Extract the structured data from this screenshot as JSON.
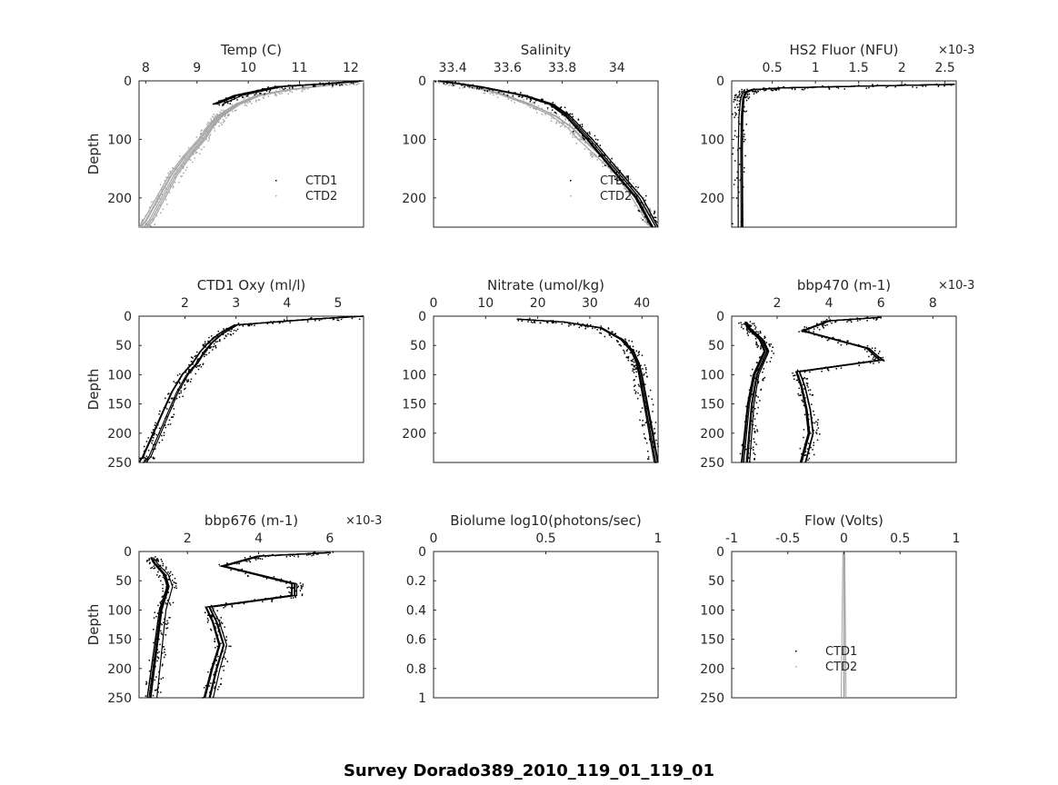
{
  "chart_data": {
    "title": "Survey Dorado389_2010_119_01_119_01",
    "panels": [
      {
        "type": "scatter",
        "title": "Temp (C)",
        "ylabel": "Depth",
        "xlim": [
          7.87,
          12.25
        ],
        "ylim": [
          0,
          250
        ],
        "xticks": [
          "8",
          "9",
          "10",
          "11",
          "12"
        ],
        "xtickvals": [
          8,
          9,
          10,
          11,
          12
        ],
        "yticks": [
          "0",
          "100",
          "200"
        ],
        "ytickvals": [
          0,
          100,
          200
        ],
        "exponent": "",
        "legend": [
          "CTD1",
          "CTD2"
        ],
        "series": [
          {
            "name": "CTD2",
            "color": "#a6a6a6",
            "depth": [
              0,
              5,
              15,
              25,
              40,
              60,
              80,
              100,
              130,
              160,
              200,
              240,
              250
            ],
            "values": [
              12.2,
              11.8,
              10.8,
              10.2,
              9.8,
              9.45,
              9.25,
              9.1,
              8.8,
              8.55,
              8.3,
              8.05,
              7.95
            ]
          },
          {
            "name": "CTD1",
            "color": "#000000",
            "depth": [
              0,
              5,
              10,
              25,
              40
            ],
            "values": [
              12.2,
              11.5,
              10.6,
              9.8,
              9.4
            ]
          }
        ]
      },
      {
        "type": "scatter",
        "title": "Salinity",
        "ylabel": "",
        "xlim": [
          33.33,
          34.15
        ],
        "ylim": [
          0,
          250
        ],
        "xticks": [
          "33.4",
          "33.6",
          "33.8",
          "34"
        ],
        "xtickvals": [
          33.4,
          33.6,
          33.8,
          34
        ],
        "yticks": [
          "0",
          "100",
          "200"
        ],
        "ytickvals": [
          0,
          100,
          200
        ],
        "exponent": "",
        "legend": [
          "CTD1",
          "CTD2"
        ],
        "series": [
          {
            "name": "CTD2",
            "color": "#a6a6a6",
            "depth": [
              0,
              5,
              20,
              40,
              60,
              80,
              100,
              130,
              160,
              200,
              230,
              250
            ],
            "values": [
              33.33,
              33.42,
              33.56,
              33.68,
              33.77,
              33.83,
              33.87,
              33.94,
              34.01,
              34.07,
              34.11,
              34.14
            ]
          },
          {
            "name": "CTD1",
            "color": "#000000",
            "depth": [
              0,
              10,
              25,
              40,
              60,
              100,
              150,
              200,
              250
            ],
            "values": [
              33.35,
              33.5,
              33.66,
              33.76,
              33.82,
              33.9,
              33.99,
              34.08,
              34.14
            ]
          }
        ]
      },
      {
        "type": "scatter",
        "title": "HS2 Fluor (NFU)",
        "ylabel": "",
        "xlim": [
          0.03,
          2.63
        ],
        "ylim": [
          0,
          250
        ],
        "xticks": [
          "0.5",
          "1",
          "1.5",
          "2",
          "2.5"
        ],
        "xtickvals": [
          0.5,
          1,
          1.5,
          2,
          2.5
        ],
        "yticks": [
          "0",
          "100",
          "200"
        ],
        "ytickvals": [
          0,
          100,
          200
        ],
        "exponent": "×10-3",
        "legend": [],
        "series": [
          {
            "name": "CTD1",
            "color": "#000000",
            "depth": [
              6,
              9,
              12,
              15,
              20,
              30,
              60,
              120,
              250
            ],
            "values": [
              2.6,
              1.5,
              0.6,
              0.25,
              0.16,
              0.13,
              0.11,
              0.1,
              0.1
            ]
          }
        ]
      },
      {
        "type": "line",
        "title": "CTD1 Oxy (ml/l)",
        "ylabel": "Depth",
        "xlim": [
          1.1,
          5.5
        ],
        "ylim": [
          0,
          250
        ],
        "xticks": [
          "2",
          "3",
          "4",
          "5"
        ],
        "xtickvals": [
          2,
          3,
          4,
          5
        ],
        "yticks": [
          "0",
          "50",
          "100",
          "150",
          "200",
          "250"
        ],
        "ytickvals": [
          0,
          50,
          100,
          150,
          200,
          250
        ],
        "exponent": "",
        "legend": [],
        "series": [
          {
            "name": "CTD1",
            "color": "#000000",
            "depth": [
              0,
              5,
              15,
              30,
              45,
              60,
              80,
              100,
              130,
              160,
              200,
              240,
              250
            ],
            "values": [
              5.5,
              4.5,
              3.0,
              2.7,
              2.5,
              2.35,
              2.2,
              2.0,
              1.8,
              1.65,
              1.45,
              1.25,
              1.15
            ]
          }
        ]
      },
      {
        "type": "scatter",
        "title": "Nitrate (umol/kg)",
        "ylabel": "",
        "xlim": [
          0,
          43.1
        ],
        "ylim": [
          0,
          250
        ],
        "xticks": [
          "0",
          "10",
          "20",
          "30",
          "40"
        ],
        "xtickvals": [
          0,
          10,
          20,
          30,
          40
        ],
        "yticks": [
          "0",
          "50",
          "100",
          "150",
          "200"
        ],
        "ytickvals": [
          0,
          50,
          100,
          150,
          200
        ],
        "exponent": "",
        "legend": [],
        "series": [
          {
            "name": "CTD1",
            "color": "#000000",
            "depth": [
              5,
              10,
              20,
              40,
              60,
              80,
              100,
              150,
              200,
              250
            ],
            "values": [
              16,
              25,
              32,
              36,
              38,
              39,
              39.5,
              40.5,
              41.5,
              42.5
            ]
          }
        ]
      },
      {
        "type": "scatter",
        "title": "bbp470 (m-1)",
        "ylabel": "",
        "xlim": [
          0.25,
          8.9
        ],
        "ylim": [
          0,
          250
        ],
        "xticks": [
          "2",
          "4",
          "6",
          "8"
        ],
        "xtickvals": [
          2,
          4,
          6,
          8
        ],
        "yticks": [
          "0",
          "50",
          "100",
          "150",
          "200",
          "250"
        ],
        "ytickvals": [
          0,
          50,
          100,
          150,
          200,
          250
        ],
        "exponent": "×10-3",
        "legend": [],
        "series": [
          {
            "name": "CTD1",
            "color": "#000000",
            "depth": [
              10,
              20,
              40,
              60,
              100,
              150,
              200,
              250
            ],
            "values": [
              0.8,
              0.9,
              1.4,
              1.6,
              1.2,
              1.0,
              0.9,
              0.8
            ]
          },
          {
            "name": "CTD1",
            "color": "#000000",
            "depth": [
              2,
              8,
              25,
              55,
              75,
              95,
              120,
              160,
              200,
              250
            ],
            "values": [
              6,
              4,
              3,
              5.5,
              6,
              2.8,
              3,
              3.2,
              3.3,
              3
            ]
          }
        ]
      },
      {
        "type": "scatter",
        "title": "bbp676 (m-1)",
        "ylabel": "Depth",
        "xlim": [
          0.64,
          6.95
        ],
        "ylim": [
          0,
          250
        ],
        "xticks": [
          "2",
          "4",
          "6"
        ],
        "xtickvals": [
          2,
          4,
          6
        ],
        "yticks": [
          "0",
          "50",
          "100",
          "150",
          "200",
          "250"
        ],
        "ytickvals": [
          0,
          50,
          100,
          150,
          200,
          250
        ],
        "exponent": "×10-3",
        "legend": [],
        "series": [
          {
            "name": "CTD1",
            "color": "#000000",
            "depth": [
              10,
              20,
              40,
              60,
              100,
              150,
              200,
              250
            ],
            "values": [
              1.0,
              1.1,
              1.4,
              1.5,
              1.3,
              1.2,
              1.1,
              1.0
            ]
          },
          {
            "name": "CTD1",
            "color": "#000000",
            "depth": [
              2,
              8,
              25,
              55,
              75,
              95,
              120,
              160,
              200,
              250
            ],
            "values": [
              6,
              4,
              3,
              5,
              5,
              2.6,
              2.8,
              3,
              2.8,
              2.6
            ]
          }
        ]
      },
      {
        "type": "scatter",
        "title": "Biolume log10(photons/sec)",
        "ylabel": "",
        "xlim": [
          0,
          1
        ],
        "ylim": [
          0,
          1
        ],
        "xticks": [
          "0",
          "0.5",
          "1"
        ],
        "xtickvals": [
          0,
          0.5,
          1
        ],
        "yticks": [
          "0",
          "0.2",
          "0.4",
          "0.6",
          "0.8",
          "1"
        ],
        "ytickvals": [
          0,
          0.2,
          0.4,
          0.6,
          0.8,
          1
        ],
        "exponent": "",
        "legend": [],
        "series": []
      },
      {
        "type": "line",
        "title": "Flow (Volts)",
        "ylabel": "",
        "xlim": [
          -1,
          1
        ],
        "ylim": [
          0,
          250
        ],
        "xticks": [
          "-1",
          "-0.5",
          "0",
          "0.5",
          "1"
        ],
        "xtickvals": [
          -1,
          -0.5,
          0,
          0.5,
          1
        ],
        "yticks": [
          "0",
          "50",
          "100",
          "150",
          "200",
          "250"
        ],
        "ytickvals": [
          0,
          50,
          100,
          150,
          200,
          250
        ],
        "exponent": "",
        "legend": [
          "CTD1",
          "CTD2"
        ],
        "series": [
          {
            "name": "CTD2",
            "color": "#a6a6a6",
            "depth": [
              0,
              250
            ],
            "values": [
              0,
              0
            ]
          }
        ]
      }
    ]
  }
}
